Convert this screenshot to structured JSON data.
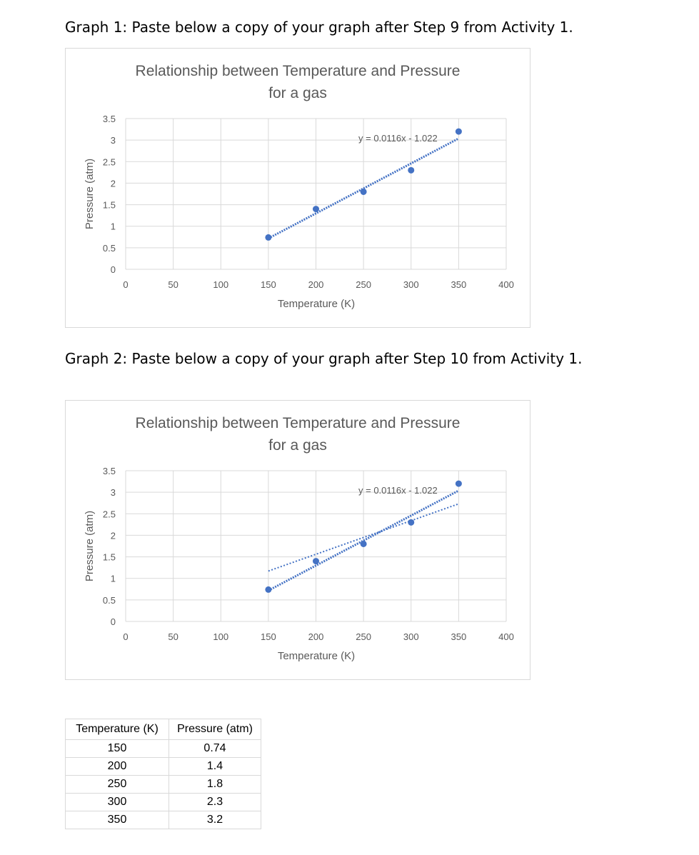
{
  "headings": {
    "graph1": "Graph 1: Paste below a copy of your graph after Step 9 from Activity 1.",
    "graph2": "Graph 2: Paste below a copy of your graph after Step 10 from Activity 1."
  },
  "chart_data": [
    {
      "type": "scatter",
      "title_line1": "Relationship between Temperature and Pressure",
      "title_line2": "for a gas",
      "xlabel": "Temperature (K)",
      "ylabel": "Pressure (atm)",
      "xlim": [
        0,
        400
      ],
      "ylim": [
        0,
        3.5
      ],
      "xticks": [
        "0",
        "50",
        "100",
        "150",
        "200",
        "250",
        "300",
        "350",
        "400"
      ],
      "yticks": [
        "0",
        "0.5",
        "1",
        "1.5",
        "2",
        "2.5",
        "3",
        "3.5"
      ],
      "grid": true,
      "point_color": "#4472c4",
      "x": [
        150,
        200,
        250,
        300,
        350
      ],
      "y": [
        0.74,
        1.4,
        1.8,
        2.3,
        3.2
      ],
      "trendlines": [
        {
          "slope": 0.0116,
          "intercept": -1.022,
          "x_range": [
            150,
            350
          ],
          "style": "dotted-heavy"
        }
      ],
      "equation": "y = 0.0116x - 1.022"
    },
    {
      "type": "scatter",
      "title_line1": "Relationship between Temperature and Pressure",
      "title_line2": "for a gas",
      "xlabel": "Temperature (K)",
      "ylabel": "Pressure (atm)",
      "xlim": [
        0,
        400
      ],
      "ylim": [
        0,
        3.5
      ],
      "xticks": [
        "0",
        "50",
        "100",
        "150",
        "200",
        "250",
        "300",
        "350",
        "400"
      ],
      "yticks": [
        "0",
        "0.5",
        "1",
        "1.5",
        "2",
        "2.5",
        "3",
        "3.5"
      ],
      "grid": true,
      "point_color": "#4472c4",
      "x": [
        150,
        200,
        250,
        300,
        350
      ],
      "y": [
        0.74,
        1.4,
        1.8,
        2.3,
        3.2
      ],
      "trendlines": [
        {
          "slope": 0.0116,
          "intercept": -1.022,
          "x_range": [
            150,
            350
          ],
          "style": "dotted-heavy"
        },
        {
          "points": [
            [
              150,
              1.17
            ],
            [
              350,
              2.73
            ]
          ],
          "style": "dotted-light"
        }
      ],
      "equation": "y = 0.0116x - 1.022"
    }
  ],
  "table": {
    "headers": [
      "Temperature (K)",
      "Pressure (atm)"
    ],
    "rows": [
      [
        "150",
        "0.74"
      ],
      [
        "200",
        "1.4"
      ],
      [
        "250",
        "1.8"
      ],
      [
        "300",
        "2.3"
      ],
      [
        "350",
        "3.2"
      ]
    ]
  }
}
